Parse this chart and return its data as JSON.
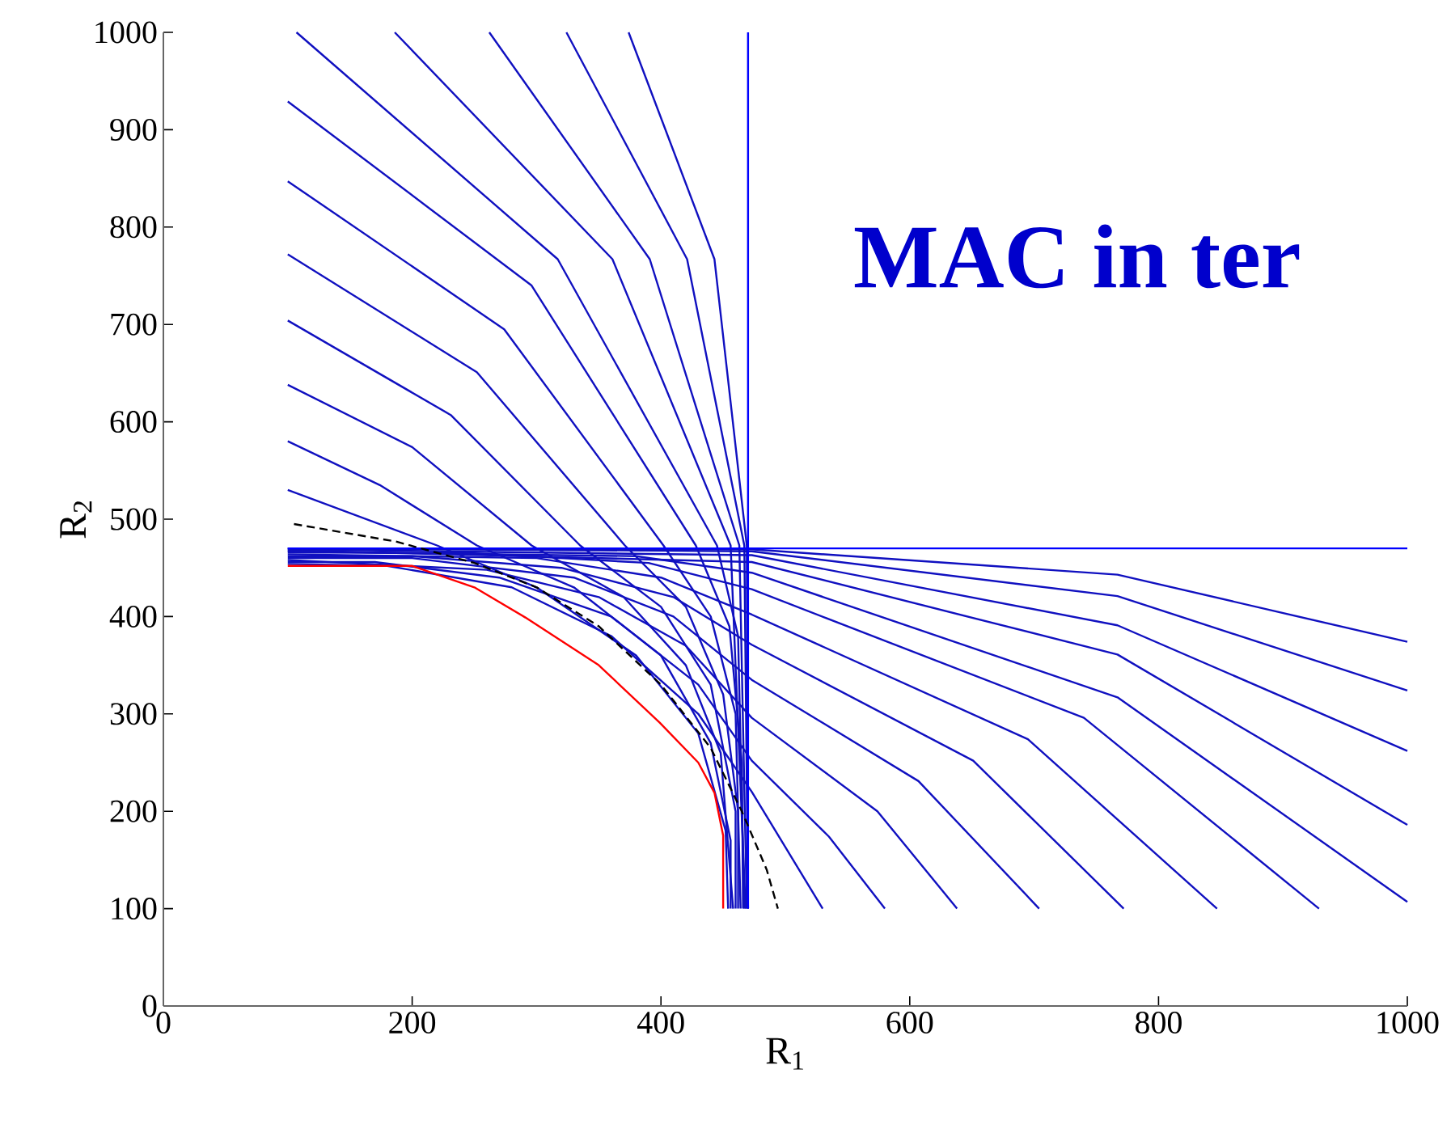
{
  "chart_data": {
    "type": "line",
    "xlabel": "R$_{1}$",
    "ylabel": "R$_{2}$",
    "xlim": [
      0,
      1000
    ],
    "ylim": [
      0,
      1000
    ],
    "xticks": [
      0,
      200,
      400,
      600,
      800,
      1000
    ],
    "yticks": [
      0,
      100,
      200,
      300,
      400,
      500,
      600,
      700,
      800,
      900,
      1000
    ],
    "annotations": [
      "MAC in ter"
    ],
    "series": [
      {
        "color": "#1010c0",
        "x": [
          100,
          220,
          300,
          380,
          430,
          452,
          454
        ],
        "values": [
          530,
          473,
          430,
          360,
          280,
          180,
          100
        ]
      },
      {
        "color": "#1010c0",
        "x": [
          100,
          174,
          252,
          330,
          400,
          440,
          456,
          456
        ],
        "values": [
          580,
          535,
          473,
          430,
          360,
          270,
          170,
          100
        ]
      },
      {
        "color": "#1010c0",
        "x": [
          100,
          200,
          296,
          370,
          420,
          448,
          458
        ],
        "values": [
          638,
          574,
          473,
          420,
          350,
          260,
          100
        ]
      },
      {
        "color": "#1010c0",
        "x": [
          100,
          231,
          335,
          400,
          440,
          460,
          460
        ],
        "values": [
          704,
          607,
          473,
          410,
          330,
          200,
          100
        ]
      },
      {
        "color": "#1010c0",
        "x": [
          100,
          252,
          371,
          420,
          450,
          462,
          462
        ],
        "values": [
          772,
          651,
          473,
          410,
          320,
          200,
          100
        ]
      },
      {
        "color": "#1010c0",
        "x": [
          100,
          274,
          402,
          440,
          460,
          464
        ],
        "values": [
          847,
          695,
          473,
          400,
          300,
          100
        ]
      },
      {
        "color": "#1010c0",
        "x": [
          100,
          296,
          428,
          455,
          465,
          466
        ],
        "values": [
          929,
          740,
          473,
          390,
          250,
          100
        ]
      },
      {
        "color": "#1010c0",
        "x": [
          107,
          317,
          445,
          462,
          467
        ],
        "values": [
          1000,
          767,
          473,
          380,
          100
        ]
      },
      {
        "color": "#1010c0",
        "x": [
          186,
          361,
          456,
          468
        ],
        "values": [
          1000,
          767,
          473,
          100
        ]
      },
      {
        "color": "#1010c0",
        "x": [
          262,
          391,
          463,
          469
        ],
        "values": [
          1000,
          767,
          473,
          100
        ]
      },
      {
        "color": "#1010c0",
        "x": [
          324,
          421,
          467,
          470
        ],
        "values": [
          1000,
          767,
          473,
          100
        ]
      },
      {
        "color": "#1010c0",
        "x": [
          374,
          443,
          469,
          470
        ],
        "values": [
          1000,
          767,
          473,
          100
        ]
      },
      {
        "color": "#1010c0",
        "x": [
          530,
          473,
          430,
          360,
          280,
          180,
          100
        ],
        "values": [
          100,
          220,
          300,
          380,
          430,
          452,
          454
        ]
      },
      {
        "color": "#1010c0",
        "x": [
          580,
          535,
          473,
          430,
          360,
          270,
          170,
          100
        ],
        "values": [
          100,
          174,
          252,
          330,
          400,
          440,
          456,
          456
        ]
      },
      {
        "color": "#1010c0",
        "x": [
          638,
          574,
          473,
          420,
          350,
          260,
          100
        ],
        "values": [
          100,
          200,
          296,
          370,
          420,
          448,
          458
        ]
      },
      {
        "color": "#1010c0",
        "x": [
          704,
          607,
          473,
          410,
          330,
          200,
          100
        ],
        "values": [
          100,
          231,
          335,
          400,
          440,
          460,
          460
        ]
      },
      {
        "color": "#1010c0",
        "x": [
          772,
          651,
          473,
          410,
          320,
          200,
          100
        ],
        "values": [
          100,
          252,
          371,
          420,
          450,
          462,
          462
        ]
      },
      {
        "color": "#1010c0",
        "x": [
          847,
          695,
          473,
          400,
          300,
          100
        ],
        "values": [
          100,
          274,
          402,
          440,
          460,
          464
        ]
      },
      {
        "color": "#1010c0",
        "x": [
          929,
          740,
          473,
          390,
          250,
          100
        ],
        "values": [
          100,
          296,
          428,
          455,
          465,
          466
        ]
      },
      {
        "color": "#1010c0",
        "x": [
          1000,
          767,
          473,
          380,
          100
        ],
        "values": [
          107,
          317,
          445,
          462,
          467
        ]
      },
      {
        "color": "#1010c0",
        "x": [
          1000,
          767,
          473,
          100
        ],
        "values": [
          186,
          361,
          456,
          468
        ]
      },
      {
        "color": "#1010c0",
        "x": [
          1000,
          767,
          473,
          100
        ],
        "values": [
          262,
          391,
          463,
          469
        ]
      },
      {
        "color": "#1010c0",
        "x": [
          1000,
          767,
          473,
          100
        ],
        "values": [
          324,
          421,
          467,
          470
        ]
      },
      {
        "color": "#1010c0",
        "x": [
          1000,
          767,
          473,
          100
        ],
        "values": [
          374,
          443,
          469,
          470
        ]
      },
      {
        "color": "#0000ff",
        "x": [
          470,
          470
        ],
        "values": [
          100,
          1000
        ]
      },
      {
        "color": "#0000ff",
        "x": [
          100,
          1000
        ],
        "values": [
          470,
          470
        ]
      },
      {
        "color": "#000000",
        "line_style": "dashed",
        "x": [
          105,
          187,
          250,
          300,
          350,
          400,
          440,
          465,
          485,
          494
        ],
        "values": [
          495,
          477,
          455,
          430,
          390,
          330,
          265,
          200,
          140,
          100
        ]
      },
      {
        "color": "#ff0000",
        "x": [
          100,
          200,
          250,
          291,
          350,
          399,
          430,
          443,
          450,
          450
        ],
        "values": [
          452,
          452,
          430,
          399,
          350,
          291,
          250,
          219,
          175,
          100
        ]
      }
    ]
  }
}
